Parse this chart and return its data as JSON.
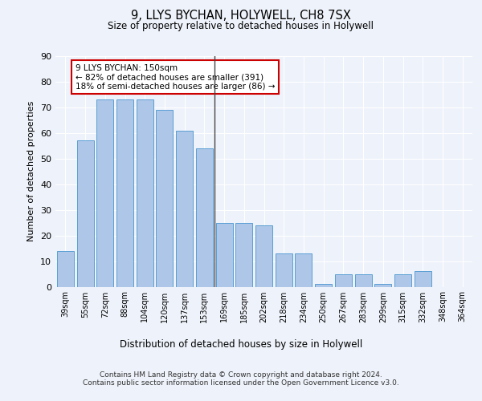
{
  "title": "9, LLYS BYCHAN, HOLYWELL, CH8 7SX",
  "subtitle": "Size of property relative to detached houses in Holywell",
  "xlabel": "Distribution of detached houses by size in Holywell",
  "ylabel": "Number of detached properties",
  "categories": [
    "39sqm",
    "55sqm",
    "72sqm",
    "88sqm",
    "104sqm",
    "120sqm",
    "137sqm",
    "153sqm",
    "169sqm",
    "185sqm",
    "202sqm",
    "218sqm",
    "234sqm",
    "250sqm",
    "267sqm",
    "283sqm",
    "299sqm",
    "315sqm",
    "332sqm",
    "348sqm",
    "364sqm"
  ],
  "values": [
    14,
    57,
    73,
    73,
    73,
    69,
    61,
    54,
    25,
    25,
    24,
    13,
    13,
    1,
    5,
    5,
    1,
    5,
    6,
    0,
    0
  ],
  "bar_color": "#aec6e8",
  "bar_edge_color": "#5a9fd4",
  "annotation_text": "9 LLYS BYCHAN: 150sqm\n← 82% of detached houses are smaller (391)\n18% of semi-detached houses are larger (86) →",
  "annotation_box_color": "#ffffff",
  "annotation_box_edge_color": "#cc0000",
  "vline_x_index": 7,
  "ylim": [
    0,
    90
  ],
  "yticks": [
    0,
    10,
    20,
    30,
    40,
    50,
    60,
    70,
    80,
    90
  ],
  "bg_color": "#eef2fa",
  "plot_bg_color": "#eef2fa",
  "grid_color": "#ffffff",
  "footer": "Contains HM Land Registry data © Crown copyright and database right 2024.\nContains public sector information licensed under the Open Government Licence v3.0."
}
